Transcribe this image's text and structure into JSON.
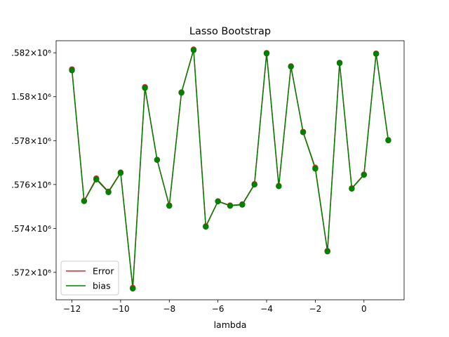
{
  "chart_data": {
    "type": "line",
    "title": "Lasso Bootstrap",
    "xlabel": "lambda",
    "ylabel": "",
    "xlim": [
      -12.65,
      1.65
    ],
    "ylim": [
      1570750,
      1582550
    ],
    "xticks": [
      -12,
      -10,
      -8,
      -6,
      -4,
      -2,
      0
    ],
    "xtick_labels": [
      "−12",
      "−10",
      "−8",
      "−6",
      "−4",
      "−2",
      "0"
    ],
    "yticks": [
      1572000,
      1574000,
      1576000,
      1578000,
      1580000,
      1582000
    ],
    "ytick_labels": [
      ".572×10⁶",
      ".574×10⁶",
      ".576×10⁶",
      ".578×10⁶",
      "1.58×10⁶",
      ".582×10⁶"
    ],
    "grid": false,
    "legend_position": "lower-left",
    "x": [
      -12,
      -11.5,
      -11,
      -10.5,
      -10,
      -9.5,
      -9,
      -8.5,
      -8,
      -7.5,
      -7,
      -6.5,
      -6,
      -5.5,
      -5,
      -4.5,
      -4,
      -3.5,
      -3,
      -2.5,
      -2,
      -1.5,
      -1,
      -0.5,
      0,
      0.5,
      1
    ],
    "series": [
      {
        "name": "Error",
        "color": "#d62728",
        "values": [
          1581250,
          1575260,
          1576280,
          1575680,
          1576550,
          1571300,
          1580440,
          1577130,
          1575050,
          1580200,
          1582150,
          1574100,
          1575240,
          1575050,
          1575100,
          1576020,
          1581990,
          1575940,
          1581390,
          1578400,
          1576770,
          1572980,
          1581550,
          1575830,
          1576460,
          1581970,
          1578030
        ]
      },
      {
        "name": "bias",
        "color": "#008000",
        "values": [
          1581200,
          1575240,
          1576230,
          1575650,
          1576530,
          1571260,
          1580400,
          1577120,
          1575030,
          1580180,
          1582120,
          1574080,
          1575230,
          1575030,
          1575080,
          1576000,
          1581970,
          1575920,
          1581370,
          1578380,
          1576720,
          1572950,
          1581530,
          1575810,
          1576440,
          1581950,
          1578010
        ]
      }
    ]
  }
}
